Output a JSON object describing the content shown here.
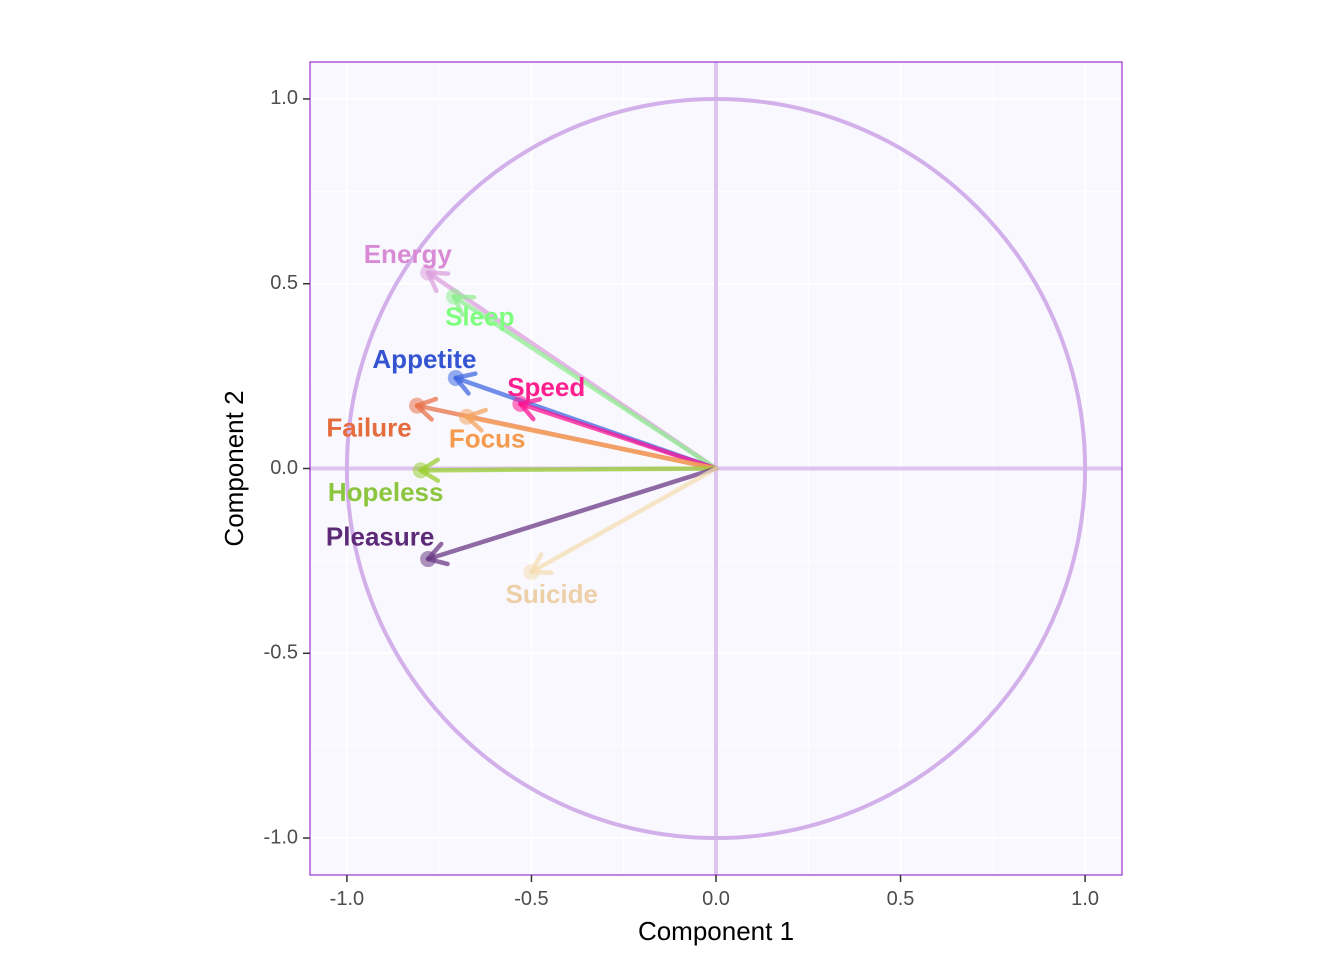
{
  "chart_data": {
    "type": "scatter",
    "subtype": "correlation-circle",
    "title": "",
    "xlabel": "Component 1",
    "ylabel": "Component 2",
    "xlim": [
      -1.1,
      1.1
    ],
    "ylim": [
      -1.1,
      1.1
    ],
    "x_ticks": [
      -1.0,
      -0.5,
      0.0,
      0.5,
      1.0
    ],
    "y_ticks": [
      -1.0,
      -0.5,
      0.0,
      0.5,
      1.0
    ],
    "x_tick_labels": [
      "-1.0",
      "-0.5",
      "0.0",
      "0.5",
      "1.0"
    ],
    "y_tick_labels": [
      "-1.0",
      "-0.5",
      "0.0",
      "0.5",
      "1.0"
    ],
    "grid": true,
    "unit_circle": true,
    "panel_background": "#f8f8fe",
    "panel_border_color": "#9932cc",
    "circle_color": "#d3b0ea",
    "legend": "none",
    "series": [
      {
        "name": "Energy",
        "x": -0.78,
        "y": 0.53,
        "color": "#dda0dd"
      },
      {
        "name": "Sleep",
        "x": -0.71,
        "y": 0.465,
        "color": "#90ee90"
      },
      {
        "name": "Appetite",
        "x": -0.705,
        "y": 0.245,
        "color": "#4169e1"
      },
      {
        "name": "Speed",
        "x": -0.53,
        "y": 0.175,
        "color": "#ff1493"
      },
      {
        "name": "Failure",
        "x": -0.81,
        "y": 0.17,
        "color": "#e9734a"
      },
      {
        "name": "Focus",
        "x": -0.675,
        "y": 0.14,
        "color": "#f4a460"
      },
      {
        "name": "Hopeless",
        "x": -0.8,
        "y": -0.005,
        "color": "#9acd32"
      },
      {
        "name": "Pleasure",
        "x": -0.78,
        "y": -0.245,
        "color": "#6b3a86"
      },
      {
        "name": "Suicide",
        "x": -0.5,
        "y": -0.28,
        "color": "#f5deb3"
      }
    ],
    "labels": [
      {
        "text": "Energy",
        "x": -0.835,
        "y": 0.575,
        "color": "#d98ad5"
      },
      {
        "text": "Sleep",
        "x": -0.64,
        "y": 0.405,
        "color": "#7fff7f"
      },
      {
        "text": "Appetite",
        "x": -0.79,
        "y": 0.29,
        "color": "#3454d1"
      },
      {
        "text": "Speed",
        "x": -0.46,
        "y": 0.215,
        "color": "#ff1f8f"
      },
      {
        "text": "Failure",
        "x": -0.94,
        "y": 0.105,
        "color": "#e46c3e"
      },
      {
        "text": "Focus",
        "x": -0.62,
        "y": 0.075,
        "color": "#f59a4c"
      },
      {
        "text": "Hopeless",
        "x": -0.895,
        "y": -0.07,
        "color": "#8cc63f"
      },
      {
        "text": "Pleasure",
        "x": -0.91,
        "y": -0.19,
        "color": "#5d2a78"
      },
      {
        "text": "Suicide",
        "x": -0.445,
        "y": -0.345,
        "color": "#edcfa8"
      }
    ]
  }
}
